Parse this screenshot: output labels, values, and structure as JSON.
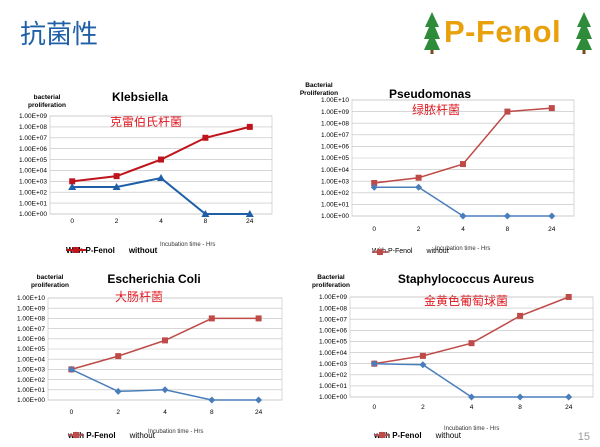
{
  "slide": {
    "title": "抗菌性",
    "brand": "P-Fenol",
    "page_number": "15"
  },
  "colors": {
    "with_series_blue_dark": "#1f5fa8",
    "with_series_blue_light": "#4a7ebb",
    "without_series_red": "#c0141c",
    "without_series_rose": "#be4b48",
    "subtitle_red": "#e0141c",
    "brand_orange": "#e8a00b",
    "tree_green": "#2e8b3a"
  },
  "chart_data": [
    {
      "type": "line",
      "title": "Klebsiella",
      "subtitle": "克雷伯氏杆菌",
      "ylabel": "bacterial proliferation",
      "xlabel": "Incubation time - Hrs",
      "y_scale": "log",
      "ylim": [
        1,
        1000000000
      ],
      "y_ticks": [
        "1.00E+00",
        "1.00E+01",
        "1.00E+02",
        "1.00E+03",
        "1.00E+04",
        "1.00E+05",
        "1.00E+06",
        "1.00E+07",
        "1.00E+08",
        "1.00E+09"
      ],
      "categories": [
        "0",
        "2",
        "4",
        "8",
        "24"
      ],
      "series": [
        {
          "name": "With P-Fenol",
          "values": [
            300,
            300,
            2000,
            1,
            1
          ]
        },
        {
          "name": "without",
          "values": [
            1000,
            3000,
            100000,
            10000000,
            100000000
          ]
        }
      ],
      "grid": true,
      "legend": "bottom"
    },
    {
      "type": "line",
      "title": "Pseudomonas",
      "subtitle": "绿脓杆菌",
      "ylabel": "Bacterial Proliferation",
      "xlabel": "Incubation time - Hrs",
      "y_scale": "log",
      "ylim": [
        1,
        10000000000
      ],
      "y_ticks": [
        "1.00E+00",
        "1.00E+01",
        "1.00E+02",
        "1.00E+03",
        "1.00E+04",
        "1.00E+05",
        "1.00E+06",
        "1.00E+07",
        "1.00E+08",
        "1.00E+09",
        "1.00E+10"
      ],
      "categories": [
        "0",
        "2",
        "4",
        "8",
        "24"
      ],
      "series": [
        {
          "name": "With P-Fenol",
          "values": [
            300,
            300,
            1,
            1,
            1
          ]
        },
        {
          "name": "without",
          "values": [
            700,
            2000,
            30000,
            1000000000,
            2000000000
          ]
        }
      ],
      "grid": true,
      "legend": "bottom"
    },
    {
      "type": "line",
      "title": "Escherichia Coli",
      "subtitle": "大肠杆菌",
      "ylabel": "bacterial proliferation",
      "xlabel": "Incubation time - Hrs",
      "y_scale": "log",
      "ylim": [
        1,
        10000000000
      ],
      "y_ticks": [
        "1.00E+00",
        "1.00E+01",
        "1.00E+02",
        "1.00E+03",
        "1.00E+04",
        "1.00E+05",
        "1.00E+06",
        "1.00E+07",
        "1.00E+08",
        "1.00E+09",
        "1.00E+10"
      ],
      "categories": [
        "0",
        "2",
        "4",
        "8",
        "24"
      ],
      "series": [
        {
          "name": "with P-Fenol",
          "values": [
            1000,
            7,
            10,
            1,
            1
          ]
        },
        {
          "name": "without",
          "values": [
            1000,
            20000,
            700000,
            100000000,
            100000000
          ]
        }
      ],
      "grid": true,
      "legend": "bottom"
    },
    {
      "type": "line",
      "title": "Staphylococcus Aureus",
      "subtitle": "金黄色葡萄球菌",
      "ylabel": "Bacterial proliferation",
      "xlabel": "Incubation time - Hrs",
      "y_scale": "log",
      "ylim": [
        1,
        1000000000
      ],
      "y_ticks": [
        "1.00E+00",
        "1.00E+01",
        "1.00E+02",
        "1.00E+03",
        "1.00E+04",
        "1.00E+05",
        "1.00E+06",
        "1.00E+07",
        "1.00E+08",
        "1.00E+09"
      ],
      "categories": [
        "0",
        "2",
        "4",
        "8",
        "24"
      ],
      "series": [
        {
          "name": "with P-Fenol",
          "values": [
            1000,
            800,
            1,
            1,
            1
          ]
        },
        {
          "name": "without",
          "values": [
            1000,
            5000,
            70000,
            20000000,
            1000000000
          ]
        }
      ],
      "grid": true,
      "legend": "bottom"
    }
  ]
}
